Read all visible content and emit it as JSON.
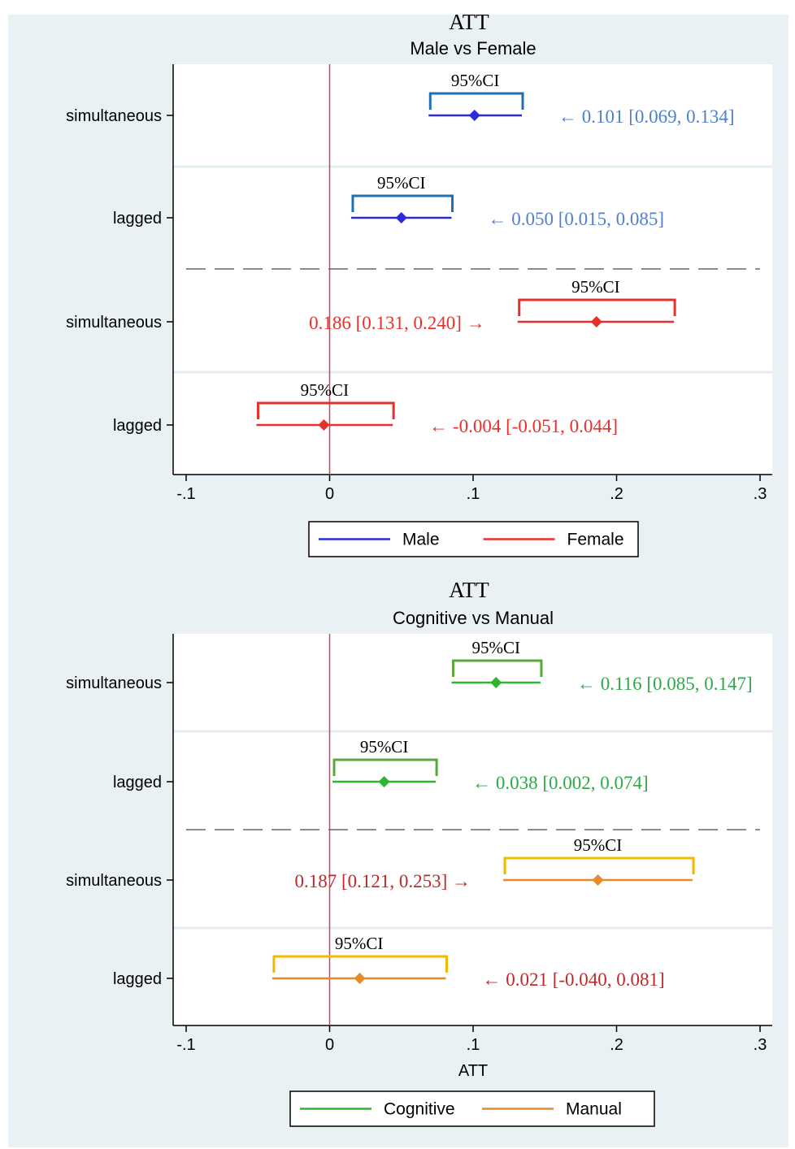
{
  "chart_data": [
    {
      "type": "scatter",
      "title": "ATT",
      "subtitle": "Male vs Female",
      "xlabel": "",
      "ylabel": "",
      "xlim": [
        -0.1,
        0.3
      ],
      "x_ticks": [
        -0.1,
        0,
        0.1,
        0.2,
        0.3
      ],
      "x_tick_labels": [
        "-.1",
        "0",
        ".1",
        ".2",
        ".3"
      ],
      "reference_line_x": 0,
      "grid": true,
      "legend_position": "bottom",
      "ci_label": "95%CI",
      "legend": [
        {
          "name": "Male",
          "color": "#2b2bd9"
        },
        {
          "name": "Female",
          "color": "#e8302a"
        }
      ],
      "rows": [
        {
          "label": "simultaneous",
          "series": "Male",
          "estimate": 0.101,
          "ci": [
            0.069,
            0.134
          ],
          "annotation": "← 0.101 [0.069, 0.134]",
          "annotation_color": "#4f7fce",
          "bracket_color": "#1f6fb5"
        },
        {
          "label": "lagged",
          "series": "Male",
          "estimate": 0.05,
          "ci": [
            0.015,
            0.085
          ],
          "annotation": "← 0.050 [0.015, 0.085]",
          "annotation_color": "#4f7fce",
          "bracket_color": "#1f6fb5"
        },
        {
          "label": "simultaneous",
          "series": "Female",
          "estimate": 0.186,
          "ci": [
            0.131,
            0.24
          ],
          "annotation": "0.186 [0.131, 0.240] →",
          "annotation_color": "#e8302a",
          "bracket_color": "#e8302a"
        },
        {
          "label": "lagged",
          "series": "Female",
          "estimate": -0.004,
          "ci": [
            -0.051,
            0.044
          ],
          "annotation": "← -0.004 [-0.051, 0.044]",
          "annotation_color": "#e8302a",
          "bracket_color": "#e8302a"
        }
      ]
    },
    {
      "type": "scatter",
      "title": "ATT",
      "subtitle": "Cognitive vs Manual",
      "xlabel": "ATT",
      "ylabel": "",
      "xlim": [
        -0.1,
        0.3
      ],
      "x_ticks": [
        -0.1,
        0,
        0.1,
        0.2,
        0.3
      ],
      "x_tick_labels": [
        "-.1",
        "0",
        ".1",
        ".2",
        ".3"
      ],
      "reference_line_x": 0,
      "grid": true,
      "legend_position": "bottom",
      "ci_label": "95%CI",
      "legend": [
        {
          "name": "Cognitive",
          "color": "#2fb52f"
        },
        {
          "name": "Manual",
          "color": "#e88a2a"
        }
      ],
      "rows": [
        {
          "label": "simultaneous",
          "series": "Cognitive",
          "estimate": 0.116,
          "ci": [
            0.085,
            0.147
          ],
          "annotation": "← 0.116 [0.085, 0.147]",
          "annotation_color": "#2ea84a",
          "bracket_color": "#5aa83a"
        },
        {
          "label": "lagged",
          "series": "Cognitive",
          "estimate": 0.038,
          "ci": [
            0.002,
            0.074
          ],
          "annotation": "← 0.038 [0.002, 0.074]",
          "annotation_color": "#2ea84a",
          "bracket_color": "#5aa83a"
        },
        {
          "label": "simultaneous",
          "series": "Manual",
          "estimate": 0.187,
          "ci": [
            0.121,
            0.253
          ],
          "annotation": "0.187 [0.121, 0.253] →",
          "annotation_color": "#c0282a",
          "bracket_color": "#f2b800"
        },
        {
          "label": "lagged",
          "series": "Manual",
          "estimate": 0.021,
          "ci": [
            -0.04,
            0.081
          ],
          "annotation": "← 0.021 [-0.040, 0.081]",
          "annotation_color": "#c0282a",
          "bracket_color": "#f2b800"
        }
      ]
    }
  ]
}
